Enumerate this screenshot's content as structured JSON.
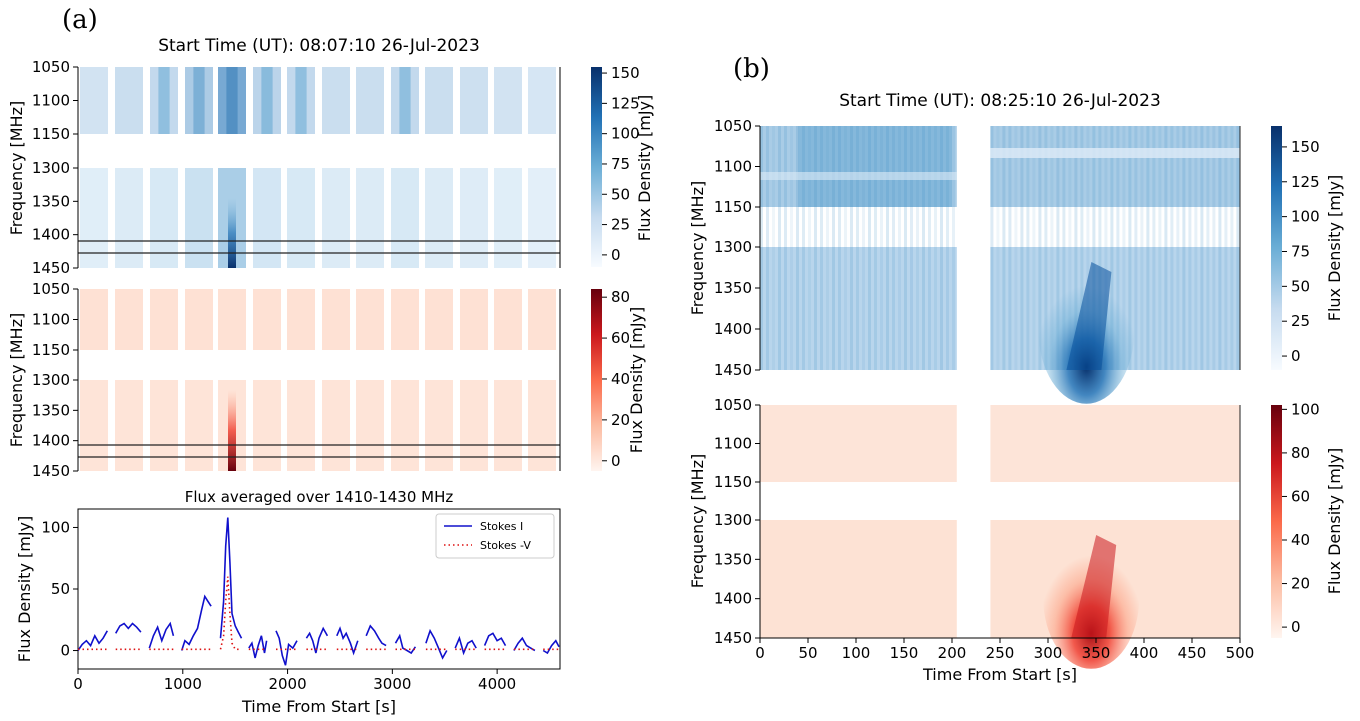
{
  "panel_labels": {
    "a": "(a)",
    "b": "(b)"
  },
  "colors": {
    "stokes_i_line": "#1010cc",
    "stokes_v_line": "#dd1010",
    "blues_low": "#f7fbff",
    "blues_high": "#08306b",
    "reds_low": "#fff5f0",
    "reds_high": "#67000d"
  },
  "chart_data": [
    {
      "id": "a-stokes-i",
      "type": "heatmap",
      "title": "Start Time (UT): 08:07:10 26-Jul-2023",
      "ylabel": "Frequency [MHz]",
      "colorbar_label": "Flux Density [mJy]",
      "colormap": "Blues",
      "y_ticks": [
        "1050",
        "1100",
        "1150",
        "1300",
        "1350",
        "1400",
        "1450"
      ],
      "y_bands": [
        [
          1050,
          1150
        ],
        [
          1300,
          1450
        ]
      ],
      "colorbar_ticks": [
        0,
        25,
        50,
        75,
        100,
        125,
        150
      ],
      "colorbar_range": [
        -10,
        155
      ],
      "highlight_band_mhz": [
        1410,
        1430
      ],
      "scan_blocks": 15,
      "scan_intensity": [
        0.25,
        0.3,
        0.35,
        0.5,
        0.85,
        0.4,
        0.35,
        0.3,
        0.3,
        0.35,
        0.3,
        0.28,
        0.25,
        0.22,
        0.2
      ]
    },
    {
      "id": "a-stokes-v",
      "type": "heatmap",
      "ylabel": "Frequency [MHz]",
      "colorbar_label": "Flux Density [mJy]",
      "colormap": "Reds",
      "y_ticks": [
        "1050",
        "1100",
        "1150",
        "1300",
        "1350",
        "1400",
        "1450"
      ],
      "y_bands": [
        [
          1050,
          1150
        ],
        [
          1300,
          1450
        ]
      ],
      "colorbar_ticks": [
        0,
        20,
        40,
        60,
        80
      ],
      "colorbar_range": [
        -5,
        84
      ],
      "highlight_band_mhz": [
        1410,
        1430
      ],
      "scan_blocks": 15
    },
    {
      "id": "a-flux-line",
      "type": "line",
      "title": "Flux averaged over 1410-1430 MHz",
      "xlabel": "Time From Start [s]",
      "ylabel": "Flux Density [mJy]",
      "xlim": [
        0,
        4600
      ],
      "ylim": [
        -15,
        115
      ],
      "x_ticks": [
        0,
        1000,
        2000,
        3000,
        4000
      ],
      "y_ticks": [
        0,
        50,
        100
      ],
      "legend_position": "top-right",
      "series": [
        {
          "name": "Stokes I",
          "style": "solid",
          "segments": [
            [
              [
                0,
                0
              ],
              [
                40,
                5
              ],
              [
                80,
                8
              ],
              [
                120,
                4
              ],
              [
                160,
                12
              ],
              [
                200,
                6
              ],
              [
                240,
                10
              ],
              [
                280,
                16
              ]
            ],
            [
              [
                360,
                14
              ],
              [
                400,
                20
              ],
              [
                440,
                22
              ],
              [
                480,
                18
              ],
              [
                520,
                22
              ],
              [
                560,
                19
              ],
              [
                600,
                15
              ]
            ],
            [
              [
                680,
                2
              ],
              [
                720,
                12
              ],
              [
                760,
                19
              ],
              [
                800,
                8
              ],
              [
                840,
                17
              ],
              [
                880,
                22
              ],
              [
                910,
                12
              ]
            ],
            [
              [
                990,
                0
              ],
              [
                1020,
                8
              ],
              [
                1060,
                5
              ],
              [
                1100,
                12
              ],
              [
                1140,
                18
              ],
              [
                1180,
                33
              ],
              [
                1210,
                44
              ],
              [
                1240,
                40
              ],
              [
                1270,
                36
              ]
            ],
            [
              [
                1360,
                10
              ],
              [
                1390,
                40
              ],
              [
                1410,
                85
              ],
              [
                1430,
                108
              ],
              [
                1450,
                72
              ],
              [
                1470,
                30
              ],
              [
                1500,
                20
              ],
              [
                1530,
                15
              ],
              [
                1560,
                10
              ]
            ],
            [
              [
                1630,
                2
              ],
              [
                1660,
                6
              ],
              [
                1690,
                -6
              ],
              [
                1720,
                4
              ],
              [
                1750,
                12
              ],
              [
                1780,
                -2
              ],
              [
                1800,
                8
              ]
            ],
            [
              [
                1890,
                16
              ],
              [
                1920,
                10
              ],
              [
                1950,
                -4
              ],
              [
                1980,
                -12
              ],
              [
                2010,
                5
              ],
              [
                2050,
                2
              ],
              [
                2090,
                8
              ]
            ],
            [
              [
                2180,
                10
              ],
              [
                2210,
                14
              ],
              [
                2240,
                8
              ],
              [
                2270,
                -2
              ],
              [
                2300,
                10
              ],
              [
                2340,
                18
              ],
              [
                2380,
                12
              ]
            ],
            [
              [
                2470,
                12
              ],
              [
                2500,
                18
              ],
              [
                2530,
                10
              ],
              [
                2560,
                14
              ],
              [
                2600,
                6
              ],
              [
                2630,
                -2
              ],
              [
                2670,
                8
              ]
            ],
            [
              [
                2750,
                12
              ],
              [
                2790,
                20
              ],
              [
                2830,
                16
              ],
              [
                2870,
                10
              ],
              [
                2900,
                6
              ],
              [
                2940,
                4
              ]
            ],
            [
              [
                3030,
                6
              ],
              [
                3070,
                12
              ],
              [
                3100,
                2
              ],
              [
                3140,
                0
              ],
              [
                3180,
                -2
              ],
              [
                3220,
                3
              ]
            ],
            [
              [
                3320,
                6
              ],
              [
                3360,
                16
              ],
              [
                3400,
                10
              ],
              [
                3440,
                2
              ],
              [
                3480,
                -6
              ],
              [
                3520,
                0
              ]
            ],
            [
              [
                3600,
                2
              ],
              [
                3640,
                10
              ],
              [
                3680,
                -2
              ],
              [
                3720,
                6
              ],
              [
                3760,
                8
              ],
              [
                3800,
                2
              ]
            ],
            [
              [
                3880,
                4
              ],
              [
                3920,
                12
              ],
              [
                3960,
                14
              ],
              [
                4000,
                8
              ],
              [
                4040,
                10
              ],
              [
                4080,
                4
              ]
            ],
            [
              [
                4160,
                0
              ],
              [
                4200,
                6
              ],
              [
                4240,
                10
              ],
              [
                4280,
                4
              ],
              [
                4320,
                2
              ],
              [
                4360,
                0
              ]
            ],
            [
              [
                4440,
                0
              ],
              [
                4480,
                -2
              ],
              [
                4520,
                4
              ],
              [
                4560,
                8
              ],
              [
                4590,
                3
              ]
            ]
          ]
        },
        {
          "name": "Stokes -V",
          "style": "dotted",
          "segments": [
            [
              [
                0,
                1
              ],
              [
                280,
                1
              ]
            ],
            [
              [
                360,
                1
              ],
              [
                600,
                1
              ]
            ],
            [
              [
                680,
                1
              ],
              [
                910,
                1
              ]
            ],
            [
              [
                990,
                1
              ],
              [
                1270,
                1
              ]
            ],
            [
              [
                1360,
                1
              ],
              [
                1390,
                12
              ],
              [
                1410,
                40
              ],
              [
                1430,
                60
              ],
              [
                1450,
                30
              ],
              [
                1470,
                6
              ],
              [
                1500,
                1
              ],
              [
                1560,
                1
              ]
            ],
            [
              [
                1630,
                1
              ],
              [
                1800,
                1
              ]
            ],
            [
              [
                1890,
                1
              ],
              [
                2090,
                1
              ]
            ],
            [
              [
                2180,
                1
              ],
              [
                2380,
                1
              ]
            ],
            [
              [
                2470,
                1
              ],
              [
                2670,
                1
              ]
            ],
            [
              [
                2750,
                1
              ],
              [
                2940,
                1
              ]
            ],
            [
              [
                3030,
                1
              ],
              [
                3220,
                1
              ]
            ],
            [
              [
                3320,
                1
              ],
              [
                3520,
                1
              ]
            ],
            [
              [
                3600,
                1
              ],
              [
                3800,
                1
              ]
            ],
            [
              [
                3880,
                1
              ],
              [
                4080,
                1
              ]
            ],
            [
              [
                4160,
                1
              ],
              [
                4360,
                1
              ]
            ],
            [
              [
                4440,
                1
              ],
              [
                4590,
                1
              ]
            ]
          ]
        }
      ]
    },
    {
      "id": "b-stokes-i",
      "type": "heatmap",
      "title": "Start Time (UT): 08:25:10 26-Jul-2023",
      "ylabel": "Frequency [MHz]",
      "colorbar_label": "Flux Density [mJy]",
      "colormap": "Blues",
      "xlim": [
        0,
        500
      ],
      "y_ticks": [
        "1050",
        "1100",
        "1150",
        "1300",
        "1350",
        "1400",
        "1450"
      ],
      "y_bands": [
        [
          1050,
          1150
        ],
        [
          1300,
          1450
        ]
      ],
      "data_gap_s": [
        205,
        240
      ],
      "colorbar_ticks": [
        0,
        25,
        50,
        75,
        100,
        125,
        150
      ],
      "colorbar_range": [
        -10,
        165
      ],
      "burst": {
        "time_s": [
          300,
          370
        ],
        "peak_time_s": 340,
        "peak_freq_mhz": 1430,
        "peak_mjy": 160
      }
    },
    {
      "id": "b-stokes-v",
      "type": "heatmap",
      "xlabel": "Time From Start [s]",
      "ylabel": "Frequency [MHz]",
      "colorbar_label": "Flux Density [mJy]",
      "colormap": "Reds",
      "xlim": [
        0,
        500
      ],
      "x_ticks": [
        0,
        50,
        100,
        150,
        200,
        250,
        300,
        350,
        400,
        450,
        500
      ],
      "y_ticks": [
        "1050",
        "1100",
        "1150",
        "1300",
        "1350",
        "1400",
        "1450"
      ],
      "y_bands": [
        [
          1050,
          1150
        ],
        [
          1300,
          1450
        ]
      ],
      "data_gap_s": [
        205,
        240
      ],
      "colorbar_ticks": [
        0,
        20,
        40,
        60,
        80,
        100
      ],
      "colorbar_range": [
        -5,
        102
      ],
      "burst": {
        "time_s": [
          300,
          370
        ],
        "peak_time_s": 345,
        "peak_freq_mhz": 1430,
        "peak_mjy": 100
      }
    }
  ]
}
